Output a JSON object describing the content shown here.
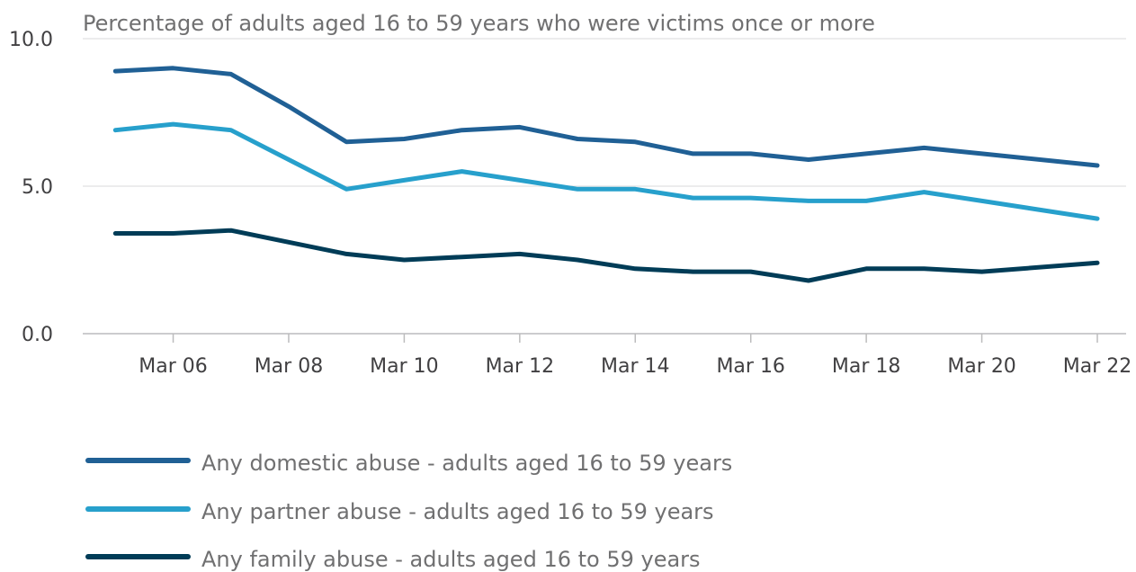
{
  "chart_data": {
    "type": "line",
    "title": "",
    "ylabel": "Percentage of adults aged 16 to 59 years who were victims once or more",
    "xlabel": "",
    "ylim": [
      0,
      10
    ],
    "yticks": [
      "0.0",
      "5.0",
      "10.0"
    ],
    "ytick_values": [
      0,
      5,
      10
    ],
    "x": [
      "Mar 05",
      "Mar 06",
      "Mar 07",
      "Mar 08",
      "Mar 09",
      "Mar 10",
      "Mar 11",
      "Mar 12",
      "Mar 13",
      "Mar 14",
      "Mar 15",
      "Mar 16",
      "Mar 17",
      "Mar 18",
      "Mar 19",
      "Mar 20",
      "Mar 22"
    ],
    "x_positions": [
      2005,
      2006,
      2007,
      2008,
      2009,
      2010,
      2011,
      2012,
      2013,
      2014,
      2015,
      2016,
      2017,
      2018,
      2019,
      2020,
      2022
    ],
    "xticks": [
      "Mar 06",
      "Mar 08",
      "Mar 10",
      "Mar 12",
      "Mar 14",
      "Mar 16",
      "Mar 18",
      "Mar 20",
      "Mar 22"
    ],
    "xtick_positions": [
      2006,
      2008,
      2010,
      2012,
      2014,
      2016,
      2018,
      2020,
      2022
    ],
    "xlim": [
      2004.45,
      2022
    ],
    "grid": true,
    "legend_position": "bottom",
    "series": [
      {
        "name": "Any domestic abuse - adults aged 16 to 59 years",
        "color": "#206095",
        "values": [
          8.9,
          9.0,
          8.8,
          7.7,
          6.5,
          6.6,
          6.9,
          7.0,
          6.6,
          6.5,
          6.1,
          6.1,
          5.9,
          6.1,
          6.3,
          6.1,
          5.7
        ]
      },
      {
        "name": "Any partner abuse - adults aged 16 to 59 years",
        "color": "#27a0cc",
        "values": [
          6.9,
          7.1,
          6.9,
          5.9,
          4.9,
          5.2,
          5.5,
          5.2,
          4.9,
          4.9,
          4.6,
          4.6,
          4.5,
          4.5,
          4.8,
          4.5,
          3.9
        ]
      },
      {
        "name": "Any family abuse - adults aged 16 to 59 years",
        "color": "#003c57",
        "values": [
          3.4,
          3.4,
          3.5,
          3.1,
          2.7,
          2.5,
          2.6,
          2.7,
          2.5,
          2.2,
          2.1,
          2.1,
          1.8,
          2.2,
          2.2,
          2.1,
          2.4
        ]
      }
    ]
  }
}
